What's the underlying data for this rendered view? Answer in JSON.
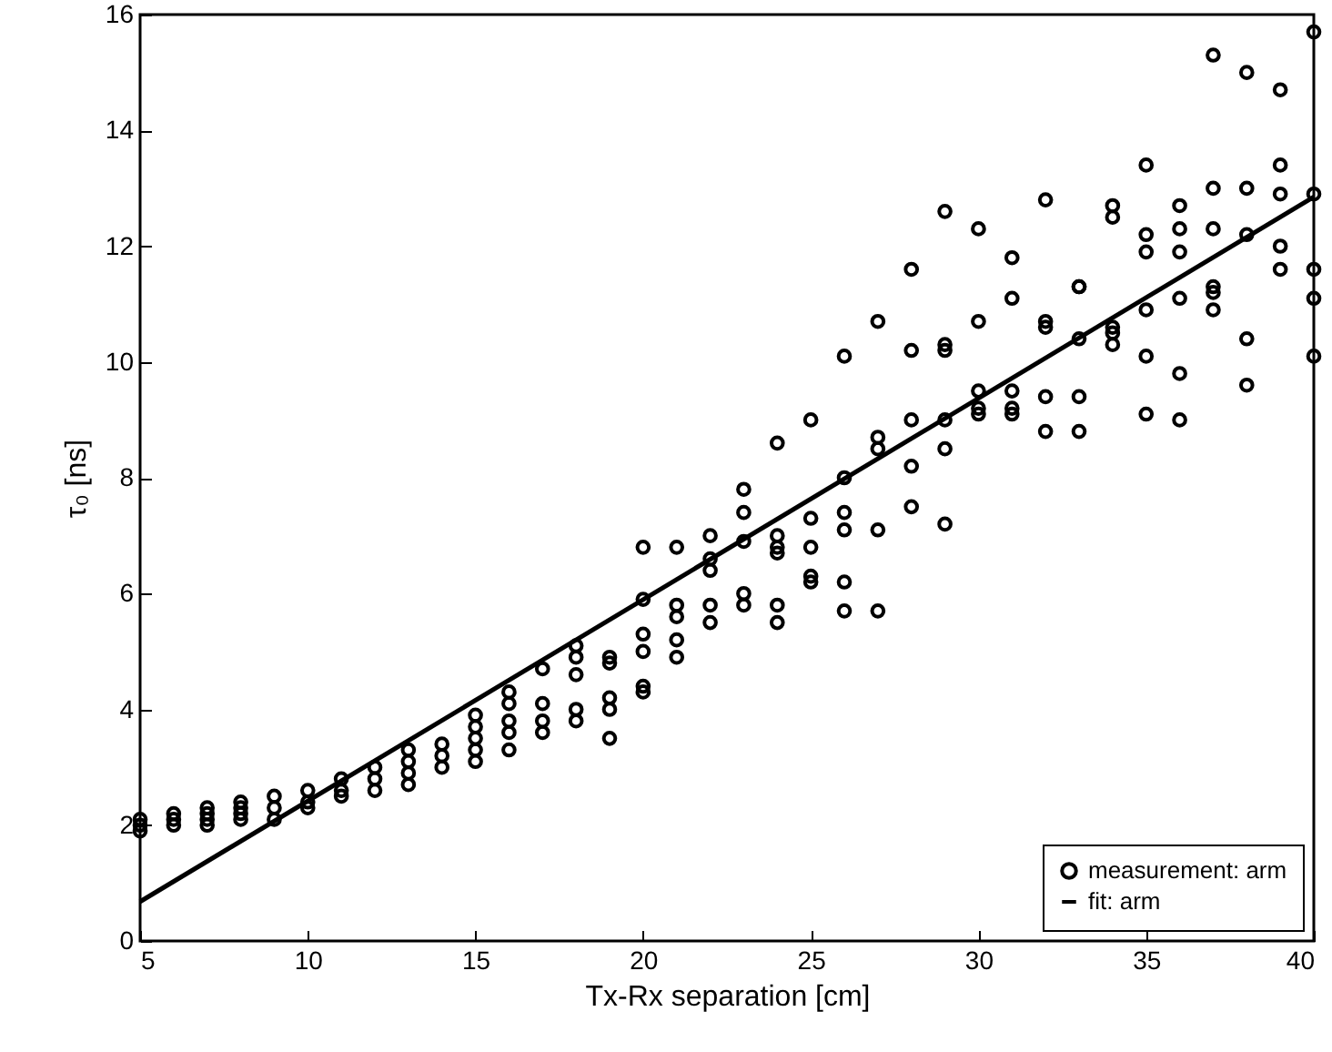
{
  "chart_data": {
    "type": "scatter",
    "xlabel": "Tx-Rx separation [cm]",
    "ylabel": "τ₀ [ns]",
    "xlim": [
      5,
      40
    ],
    "ylim": [
      0,
      16
    ],
    "xticks": [
      5,
      10,
      15,
      20,
      25,
      30,
      35,
      40
    ],
    "yticks": [
      0,
      2,
      4,
      6,
      8,
      10,
      12,
      14,
      16
    ],
    "grid": false,
    "legend": "bottom right",
    "series": [
      {
        "name": "measurement: arm",
        "color": "#000000",
        "marker": "circle",
        "x": [
          5,
          5,
          5,
          6,
          6,
          6,
          7,
          7,
          7,
          7,
          8,
          8,
          8,
          8,
          9,
          9,
          9,
          10,
          10,
          10,
          11,
          11,
          11,
          12,
          12,
          12,
          13,
          13,
          13,
          13,
          14,
          14,
          14,
          15,
          15,
          15,
          15,
          15,
          16,
          16,
          16,
          16,
          16,
          17,
          17,
          17,
          17,
          18,
          18,
          18,
          18,
          18,
          19,
          19,
          19,
          19,
          19,
          20,
          20,
          20,
          20,
          20,
          20,
          21,
          21,
          21,
          21,
          21,
          22,
          22,
          22,
          22,
          22,
          23,
          23,
          23,
          23,
          23,
          24,
          24,
          24,
          24,
          24,
          24,
          25,
          25,
          25,
          25,
          25,
          26,
          26,
          26,
          26,
          26,
          26,
          27,
          27,
          27,
          27,
          27,
          28,
          28,
          28,
          28,
          28,
          29,
          29,
          29,
          29,
          29,
          29,
          30,
          30,
          30,
          30,
          30,
          31,
          31,
          31,
          31,
          31,
          32,
          32,
          32,
          32,
          32,
          33,
          33,
          33,
          33,
          33,
          34,
          34,
          34,
          34,
          34,
          35,
          35,
          35,
          35,
          35,
          35,
          36,
          36,
          36,
          36,
          36,
          36,
          37,
          37,
          37,
          37,
          37,
          37,
          38,
          38,
          38,
          38,
          38,
          39,
          39,
          39,
          39,
          39,
          40,
          40,
          40,
          40,
          40
        ],
        "values": [
          1.9,
          2.0,
          2.1,
          2.0,
          2.1,
          2.2,
          2.0,
          2.1,
          2.2,
          2.3,
          2.1,
          2.2,
          2.3,
          2.4,
          2.1,
          2.3,
          2.5,
          2.3,
          2.4,
          2.6,
          2.5,
          2.6,
          2.8,
          2.6,
          2.8,
          3.0,
          2.7,
          2.9,
          3.1,
          3.3,
          3.0,
          3.2,
          3.4,
          3.1,
          3.3,
          3.5,
          3.7,
          3.9,
          3.3,
          3.6,
          3.8,
          4.1,
          4.3,
          3.6,
          3.8,
          4.1,
          4.7,
          3.8,
          4.0,
          4.6,
          4.9,
          5.1,
          3.5,
          4.0,
          4.2,
          4.8,
          4.9,
          4.3,
          4.4,
          5.0,
          5.3,
          5.9,
          6.8,
          4.9,
          5.2,
          5.6,
          5.8,
          6.8,
          5.5,
          5.8,
          6.4,
          6.6,
          7.0,
          5.8,
          6.0,
          6.9,
          7.4,
          7.8,
          5.5,
          5.8,
          6.7,
          6.8,
          7.0,
          8.6,
          6.2,
          6.3,
          6.8,
          7.3,
          9.0,
          5.7,
          6.2,
          7.1,
          7.4,
          8.0,
          10.1,
          5.7,
          7.1,
          8.5,
          8.7,
          10.7,
          7.5,
          8.2,
          9.0,
          10.2,
          11.6,
          7.2,
          8.5,
          9.0,
          10.2,
          10.3,
          12.6,
          9.1,
          9.2,
          9.5,
          10.7,
          12.3,
          9.1,
          9.2,
          9.5,
          11.1,
          11.8,
          8.8,
          9.4,
          10.6,
          10.7,
          12.8,
          8.8,
          9.4,
          10.4,
          11.3,
          11.3,
          10.3,
          10.5,
          10.6,
          12.5,
          12.7,
          9.1,
          10.1,
          10.9,
          11.9,
          12.2,
          13.4,
          9.0,
          9.8,
          11.1,
          11.9,
          12.3,
          12.7,
          10.9,
          11.2,
          11.3,
          12.3,
          13.0,
          15.3,
          9.6,
          10.4,
          12.2,
          13.0,
          15.0,
          11.6,
          12.0,
          12.9,
          13.4,
          14.7,
          10.1,
          11.1,
          11.6,
          12.9,
          15.7
        ]
      },
      {
        "name": "fit: arm",
        "type": "line",
        "color": "#000000",
        "line_style": "solid",
        "marker": "none",
        "x": [
          5,
          40
        ],
        "values": [
          0.68,
          12.85
        ]
      }
    ]
  }
}
